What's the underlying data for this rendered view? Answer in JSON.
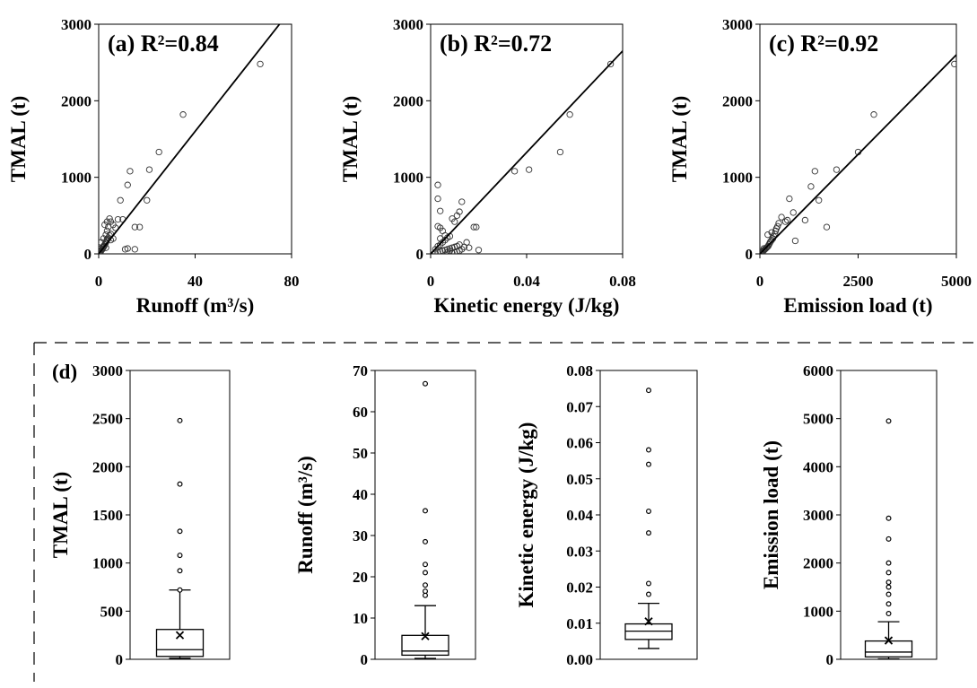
{
  "chart_data": [
    {
      "type": "scatter",
      "panel": "(a)",
      "title": "R²=0.84",
      "xlabel": "Runoff (m³/s)",
      "ylabel": "TMAL (t)",
      "xlim": [
        0,
        80
      ],
      "ylim": [
        0,
        3000
      ],
      "xticks": [
        "0",
        "40",
        "80"
      ],
      "yticks": [
        "0",
        "1000",
        "2000",
        "3000"
      ],
      "fit_line": {
        "x": [
          0,
          75
        ],
        "y": [
          0,
          3000
        ]
      },
      "points": [
        [
          0.2,
          5
        ],
        [
          0.4,
          12
        ],
        [
          0.6,
          20
        ],
        [
          0.8,
          30
        ],
        [
          1,
          40
        ],
        [
          1.2,
          50
        ],
        [
          1.5,
          60
        ],
        [
          1.8,
          80
        ],
        [
          2,
          90
        ],
        [
          2.2,
          100
        ],
        [
          2.5,
          120
        ],
        [
          2.8,
          140
        ],
        [
          3,
          150
        ],
        [
          3.3,
          170
        ],
        [
          3.5,
          190
        ],
        [
          4,
          210
        ],
        [
          4.5,
          240
        ],
        [
          5,
          260
        ],
        [
          1,
          150
        ],
        [
          2,
          200
        ],
        [
          3,
          250
        ],
        [
          3.5,
          300
        ],
        [
          4,
          350
        ],
        [
          2.5,
          380
        ],
        [
          3.5,
          420
        ],
        [
          4.5,
          460
        ],
        [
          5,
          420
        ],
        [
          6,
          380
        ],
        [
          7,
          340
        ],
        [
          2,
          100
        ],
        [
          5,
          180
        ],
        [
          6,
          200
        ],
        [
          8,
          450
        ],
        [
          10,
          450
        ],
        [
          9,
          700
        ],
        [
          12,
          900
        ],
        [
          13,
          1080
        ],
        [
          20,
          700
        ],
        [
          21,
          1100
        ],
        [
          25,
          1330
        ],
        [
          35,
          1820
        ],
        [
          67,
          2480
        ],
        [
          11,
          60
        ],
        [
          12,
          70
        ],
        [
          15,
          60
        ],
        [
          15,
          350
        ],
        [
          17,
          350
        ],
        [
          3,
          80
        ],
        [
          1,
          70
        ],
        [
          0.5,
          30
        ]
      ]
    },
    {
      "type": "scatter",
      "panel": "(b)",
      "title": "R²=0.72",
      "xlabel": "Kinetic energy (J/kg)",
      "ylabel": "TMAL (t)",
      "xlim": [
        0,
        0.08
      ],
      "ylim": [
        0,
        3000
      ],
      "xticks": [
        "0",
        "0.04",
        "0.08"
      ],
      "yticks": [
        "0",
        "1000",
        "2000",
        "3000"
      ],
      "fit_line": {
        "x": [
          0,
          0.08
        ],
        "y": [
          0,
          2650
        ]
      },
      "points": [
        [
          0.003,
          900
        ],
        [
          0.003,
          720
        ],
        [
          0.004,
          560
        ],
        [
          0.003,
          360
        ],
        [
          0.004,
          340
        ],
        [
          0.005,
          300
        ],
        [
          0.006,
          240
        ],
        [
          0.004,
          200
        ],
        [
          0.007,
          210
        ],
        [
          0.008,
          230
        ],
        [
          0.009,
          460
        ],
        [
          0.01,
          420
        ],
        [
          0.011,
          500
        ],
        [
          0.012,
          550
        ],
        [
          0.013,
          680
        ],
        [
          0.015,
          150
        ],
        [
          0.016,
          80
        ],
        [
          0.018,
          350
        ],
        [
          0.019,
          350
        ],
        [
          0.02,
          50
        ],
        [
          0.002,
          10
        ],
        [
          0.003,
          20
        ],
        [
          0.004,
          30
        ],
        [
          0.005,
          40
        ],
        [
          0.006,
          50
        ],
        [
          0.007,
          60
        ],
        [
          0.008,
          70
        ],
        [
          0.009,
          80
        ],
        [
          0.01,
          90
        ],
        [
          0.011,
          100
        ],
        [
          0.012,
          120
        ],
        [
          0.005,
          150
        ],
        [
          0.006,
          180
        ],
        [
          0.007,
          20
        ],
        [
          0.008,
          40
        ],
        [
          0.009,
          10
        ],
        [
          0.01,
          20
        ],
        [
          0.011,
          30
        ],
        [
          0.012,
          40
        ],
        [
          0.013,
          60
        ],
        [
          0.014,
          90
        ],
        [
          0.003,
          100
        ],
        [
          0.004,
          120
        ],
        [
          0.002,
          60
        ],
        [
          0.035,
          1080
        ],
        [
          0.041,
          1100
        ],
        [
          0.054,
          1330
        ],
        [
          0.058,
          1820
        ],
        [
          0.075,
          2480
        ]
      ]
    },
    {
      "type": "scatter",
      "panel": "(c)",
      "title": "R²=0.92",
      "xlabel": "Emission load (t)",
      "ylabel": "TMAL (t)",
      "xlim": [
        0,
        5000
      ],
      "ylim": [
        0,
        3000
      ],
      "xticks": [
        "0",
        "2500",
        "5000"
      ],
      "yticks": [
        "0",
        "1000",
        "2000",
        "3000"
      ],
      "fit_line": {
        "x": [
          0,
          5000
        ],
        "y": [
          0,
          2600
        ]
      },
      "points": [
        [
          10,
          5
        ],
        [
          30,
          10
        ],
        [
          50,
          20
        ],
        [
          70,
          30
        ],
        [
          90,
          40
        ],
        [
          110,
          50
        ],
        [
          130,
          60
        ],
        [
          150,
          70
        ],
        [
          170,
          80
        ],
        [
          190,
          90
        ],
        [
          210,
          100
        ],
        [
          230,
          120
        ],
        [
          250,
          140
        ],
        [
          270,
          160
        ],
        [
          300,
          180
        ],
        [
          330,
          200
        ],
        [
          350,
          230
        ],
        [
          380,
          260
        ],
        [
          400,
          300
        ],
        [
          420,
          330
        ],
        [
          450,
          360
        ],
        [
          480,
          400
        ],
        [
          550,
          480
        ],
        [
          650,
          420
        ],
        [
          700,
          440
        ],
        [
          750,
          720
        ],
        [
          850,
          540
        ],
        [
          900,
          170
        ],
        [
          1150,
          440
        ],
        [
          1300,
          880
        ],
        [
          1400,
          1080
        ],
        [
          1500,
          700
        ],
        [
          1700,
          350
        ],
        [
          1950,
          1100
        ],
        [
          2500,
          1330
        ],
        [
          2900,
          1820
        ],
        [
          4950,
          2480
        ],
        [
          200,
          250
        ],
        [
          300,
          280
        ],
        [
          100,
          70
        ]
      ]
    },
    {
      "type": "box",
      "panel": "(d)",
      "ylabel": "TMAL (t)",
      "ylim": [
        0,
        3000
      ],
      "yticks": [
        "0",
        "500",
        "1000",
        "1500",
        "2000",
        "2500",
        "3000"
      ],
      "stats": {
        "min": 10,
        "q1": 30,
        "median": 100,
        "q3": 310,
        "max": 720,
        "mean": 250
      },
      "outliers": [
        720,
        920,
        1080,
        1330,
        1820,
        2480
      ]
    },
    {
      "type": "box",
      "ylabel": "Runoff (m³/s)",
      "ylim": [
        0,
        70
      ],
      "yticks": [
        "0",
        "10",
        "20",
        "30",
        "40",
        "50",
        "60",
        "70"
      ],
      "stats": {
        "min": 0.2,
        "q1": 1,
        "median": 2,
        "q3": 5.8,
        "max": 13,
        "mean": 5.6
      },
      "outliers": [
        15.5,
        16.5,
        18,
        21,
        23,
        28.5,
        36,
        66.8
      ]
    },
    {
      "type": "box",
      "ylabel": "Kinetic energy (J/kg)",
      "ylim": [
        0,
        0.08
      ],
      "yticks": [
        "0.00",
        "0.01",
        "0.02",
        "0.03",
        "0.04",
        "0.05",
        "0.06",
        "0.07",
        "0.08"
      ],
      "stats": {
        "min": 0.003,
        "q1": 0.0055,
        "median": 0.0078,
        "q3": 0.0098,
        "max": 0.0155,
        "mean": 0.0105
      },
      "outliers": [
        0.018,
        0.021,
        0.035,
        0.041,
        0.054,
        0.058,
        0.0745
      ]
    },
    {
      "type": "box",
      "ylabel": "Emission load (t)",
      "ylim": [
        0,
        6000
      ],
      "yticks": [
        "0",
        "1000",
        "2000",
        "3000",
        "4000",
        "5000",
        "6000"
      ],
      "stats": {
        "min": 10,
        "q1": 50,
        "median": 150,
        "q3": 380,
        "max": 780,
        "mean": 390
      },
      "outliers": [
        950,
        1150,
        1350,
        1500,
        1600,
        1800,
        2000,
        2500,
        2930,
        4950
      ]
    }
  ]
}
